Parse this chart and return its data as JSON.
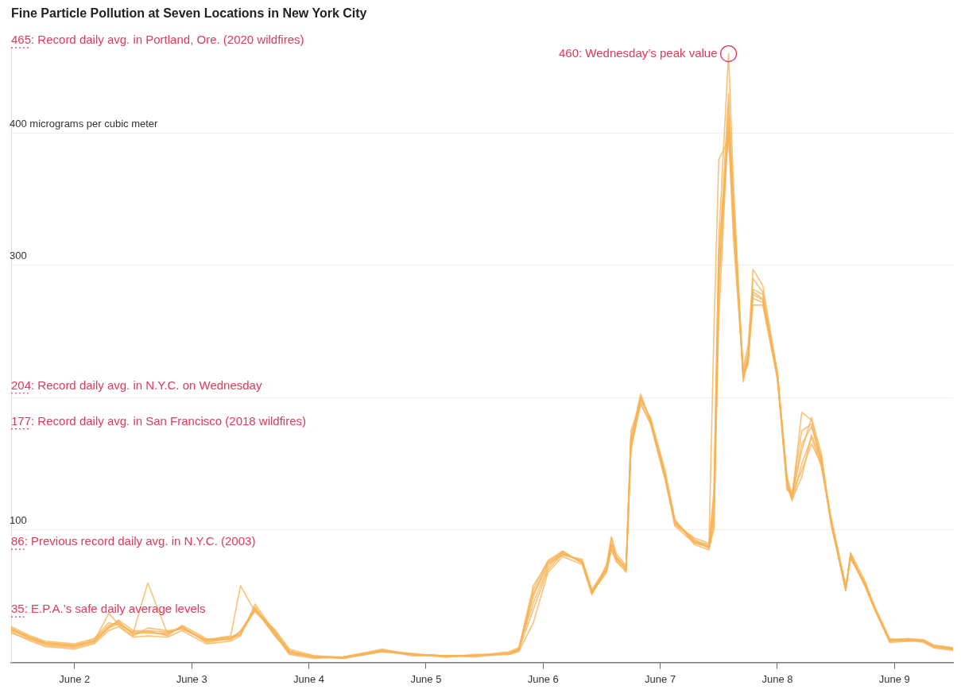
{
  "chart_data": {
    "type": "line",
    "title": "Fine Particle Pollution at Seven Locations in New York City",
    "x": [
      "--06-01T11:00",
      "--06-01T15:00",
      "--06-01T18:00",
      "--06-02T00:00",
      "--06-02T04:00",
      "--06-02T07:00",
      "--06-02T09:00",
      "--06-02T12:00",
      "--06-02T15:00",
      "--06-02T19:00",
      "--06-02T22:00",
      "--06-03T03:00",
      "--06-03T08:00",
      "--06-03T10:00",
      "--06-03T13:00",
      "--06-03T17:00",
      "--06-03T20:00",
      "--06-04T01:00",
      "--06-04T07:00",
      "--06-04T15:00",
      "--06-04T21:00",
      "--06-05T04:00",
      "--06-05T10:00",
      "--06-05T17:00",
      "--06-05T19:00",
      "--06-05T22:00",
      "--06-06T01:00",
      "--06-06T04:00",
      "--06-06T08:00",
      "--06-06T10:00",
      "--06-06T13:00",
      "--06-06T14:00",
      "--06-06T15:00",
      "--06-06T17:00",
      "--06-06T18:00",
      "--06-06T20:00",
      "--06-06T22:00",
      "--06-07T01:00",
      "--06-07T03:00",
      "--06-07T07:00",
      "--06-07T10:00",
      "--06-07T11:00",
      "--06-07T12:00",
      "--06-07T14:00",
      "--06-07T15:00",
      "--06-07T17:00",
      "--06-07T18:00",
      "--06-07T19:00",
      "--06-07T21:00",
      "--06-08T00:00",
      "--06-08T02:00",
      "--06-08T03:00",
      "--06-08T05:00",
      "--06-08T07:00",
      "--06-08T09:00",
      "--06-08T11:00",
      "--06-08T14:00",
      "--06-08T15:00",
      "--06-08T18:00",
      "--06-08T20:00",
      "--06-08T23:00",
      "--06-09T03:00",
      "--06-09T06:00",
      "--06-09T08:00",
      "--06-09T12:00"
    ],
    "series": [
      {
        "color": "#f7b355",
        "values": [
          25,
          19,
          15,
          13,
          17,
          28,
          30,
          22,
          60,
          22,
          26,
          16,
          19,
          22,
          42,
          22,
          7,
          4,
          4,
          9,
          6,
          5,
          5,
          7,
          10,
          58,
          76,
          83,
          76,
          52,
          70,
          94,
          79,
          70,
          165,
          201,
          183,
          141,
          106,
          91,
          88,
          124,
          320,
          460,
          362,
          216,
          225,
          297,
          285,
          219,
          136,
          124,
          189,
          183,
          153,
          106,
          55,
          82,
          58,
          40,
          16,
          17,
          16,
          12,
          10
        ]
      },
      {
        "color": "#f7b355",
        "values": [
          22,
          17,
          13,
          11,
          15,
          26,
          32,
          24,
          24,
          20,
          28,
          18,
          17,
          24,
          40,
          20,
          8,
          5,
          3,
          8,
          7,
          4,
          6,
          6,
          9,
          50,
          74,
          81,
          78,
          55,
          72,
          88,
          80,
          72,
          175,
          196,
          180,
          138,
          104,
          93,
          86,
          110,
          300,
          430,
          340,
          222,
          240,
          290,
          280,
          215,
          130,
          128,
          175,
          180,
          150,
          110,
          58,
          78,
          60,
          42,
          18,
          16,
          17,
          13,
          11
        ]
      },
      {
        "color": "#f7b355",
        "values": [
          27,
          20,
          16,
          14,
          18,
          30,
          28,
          20,
          26,
          24,
          25,
          17,
          20,
          58,
          38,
          24,
          9,
          4,
          4,
          10,
          6,
          5,
          5,
          8,
          11,
          45,
          72,
          84,
          75,
          53,
          68,
          85,
          77,
          68,
          160,
          198,
          185,
          145,
          108,
          89,
          85,
          105,
          280,
          420,
          350,
          212,
          230,
          280,
          275,
          220,
          140,
          126,
          165,
          178,
          155,
          104,
          56,
          80,
          57,
          39,
          17,
          18,
          16,
          12,
          10
        ]
      },
      {
        "color": "#f7b355",
        "values": [
          24,
          18,
          14,
          12,
          16,
          37,
          29,
          23,
          23,
          21,
          27,
          15,
          18,
          21,
          40,
          21,
          6,
          3,
          4,
          9,
          5,
          5,
          4,
          7,
          9,
          40,
          70,
          82,
          77,
          54,
          71,
          90,
          78,
          71,
          170,
          203,
          182,
          140,
          103,
          90,
          87,
          100,
          260,
          410,
          330,
          218,
          235,
          275,
          272,
          218,
          135,
          122,
          150,
          170,
          148,
          108,
          57,
          81,
          59,
          41,
          16,
          17,
          15,
          11,
          9
        ]
      },
      {
        "color": "#f7b355",
        "values": [
          23,
          16,
          12,
          10,
          14,
          24,
          27,
          19,
          20,
          19,
          24,
          14,
          16,
          20,
          44,
          23,
          8,
          4,
          3,
          8,
          6,
          4,
          5,
          6,
          8,
          30,
          68,
          80,
          74,
          51,
          74,
          95,
          82,
          73,
          168,
          199,
          184,
          142,
          107,
          92,
          89,
          130,
          310,
          400,
          320,
          220,
          228,
          270,
          270,
          214,
          138,
          127,
          145,
          165,
          150,
          105,
          55,
          79,
          58,
          40,
          15,
          16,
          16,
          12,
          10
        ]
      },
      {
        "color": "#f7b355",
        "values": [
          26,
          19,
          15,
          13,
          16,
          27,
          31,
          21,
          24,
          23,
          26,
          17,
          19,
          23,
          39,
          25,
          10,
          5,
          4,
          9,
          6,
          5,
          5,
          7,
          10,
          55,
          77,
          84,
          75,
          52,
          69,
          86,
          76,
          69,
          162,
          195,
          181,
          139,
          105,
          94,
          90,
          250,
          380,
          395,
          345,
          214,
          232,
          282,
          278,
          216,
          132,
          125,
          160,
          185,
          158,
          107,
          54,
          83,
          61,
          40,
          17,
          18,
          17,
          13,
          11
        ]
      },
      {
        "color": "#f7b355",
        "values": [
          25,
          18,
          14,
          12,
          16,
          26,
          29,
          22,
          22,
          22,
          27,
          16,
          18,
          21,
          41,
          22,
          7,
          4,
          4,
          9,
          6,
          5,
          5,
          7,
          10,
          52,
          75,
          82,
          76,
          53,
          70,
          89,
          79,
          70,
          166,
          200,
          183,
          141,
          106,
          91,
          87,
          115,
          290,
          405,
          335,
          216,
          226,
          278,
          274,
          217,
          134,
          123,
          140,
          172,
          152,
          106,
          55,
          80,
          58,
          40,
          16,
          17,
          16,
          12,
          10
        ]
      }
    ],
    "xlim": [
      "--06-01T11:00",
      "--06-09T12:00"
    ],
    "xticks": [
      {
        "value": "--06-02",
        "label": "June 2"
      },
      {
        "value": "--06-03",
        "label": "June 3"
      },
      {
        "value": "--06-04",
        "label": "June 4"
      },
      {
        "value": "--06-05",
        "label": "June 5"
      },
      {
        "value": "--06-06",
        "label": "June 6"
      },
      {
        "value": "--06-07",
        "label": "June 7"
      },
      {
        "value": "--06-08",
        "label": "June 8"
      },
      {
        "value": "--06-09",
        "label": "June 9"
      }
    ],
    "ylim": [
      0,
      465
    ],
    "yticks": [
      100,
      {
        "value": 200,
        "label": null
      },
      300,
      {
        "value": 400,
        "label": "400 micrograms per cubic meter"
      }
    ],
    "grid": "y",
    "legend": false,
    "ref_lines": [
      {
        "axis": "y",
        "value": 465,
        "label": "465: Record daily avg. in Portland, Ore. (2020 wildfires)",
        "color": "#e0395a",
        "line_style": "dotted"
      },
      {
        "axis": "y",
        "value": 204,
        "label": "204: Record daily avg. in N.Y.C. on Wednesday",
        "color": "#e0395a",
        "line_style": "dotted"
      },
      {
        "axis": "y",
        "value": 177,
        "label": "177: Record daily avg. in San Francisco (2018 wildfires)",
        "color": "#e0395a",
        "line_style": "dotted"
      },
      {
        "axis": "y",
        "value": 86,
        "label": "86: Previous record daily avg. in N.Y.C. (2003)",
        "color": "#e0395a",
        "line_style": "dotted"
      },
      {
        "axis": "y",
        "value": 35,
        "label": "35: E.P.A.’s safe daily average levels",
        "color": "#e0395a",
        "line_style": "dotted"
      }
    ],
    "annotations": [
      {
        "text": "460: Wednesday’s peak value",
        "x": "--06-07T14:00",
        "y": 460
      }
    ]
  }
}
